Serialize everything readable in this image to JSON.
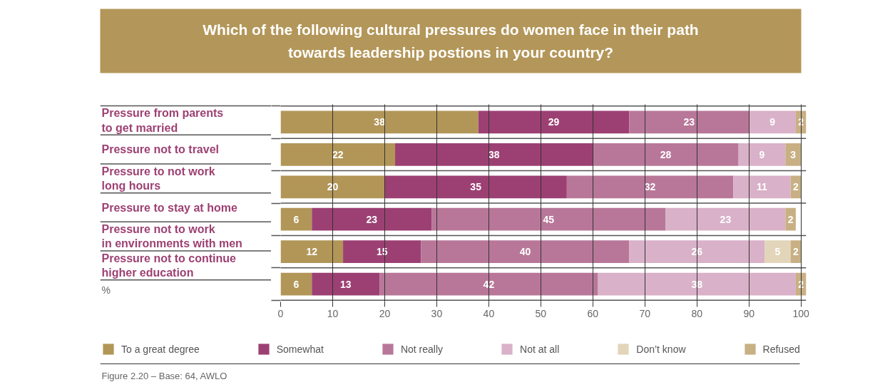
{
  "chart_data": {
    "type": "bar",
    "orientation": "horizontal",
    "stacked": true,
    "title": "Which of the following cultural pressures do women face in their path\ntowards leadership postions in your country?",
    "categories": [
      "Pressure from parents\nto get married",
      "Pressure not to travel",
      "Pressure to not work\nlong hours",
      "Pressure to stay at home",
      "Pressure not to work\nin environments with men",
      "Pressure not to continue\nhigher education"
    ],
    "series": [
      {
        "name": "To a great degree",
        "color": "#b29658",
        "values": [
          38,
          22,
          20,
          6,
          12,
          6
        ]
      },
      {
        "name": "Somewhat",
        "color": "#9c4073",
        "values": [
          29,
          38,
          35,
          23,
          15,
          13
        ]
      },
      {
        "name": "Not really",
        "color": "#b87799",
        "values": [
          23,
          28,
          32,
          45,
          40,
          42
        ]
      },
      {
        "name": "Not at all",
        "color": "#d9b1c8",
        "values": [
          9,
          9,
          11,
          23,
          26,
          38
        ]
      },
      {
        "name": "Don’t know",
        "color": "#e2d5ba",
        "values": [
          null,
          null,
          null,
          null,
          5,
          null
        ]
      },
      {
        "name": "Refused",
        "color": "#c8b084",
        "values": [
          2,
          3,
          2,
          2,
          2,
          2
        ]
      }
    ],
    "xlabel": "%",
    "xlim": [
      0,
      101
    ],
    "xticks": [
      0,
      10,
      20,
      30,
      40,
      50,
      60,
      70,
      80,
      90,
      100
    ],
    "grid": "x",
    "legend": "bottom",
    "data_labels": true,
    "annotations": [
      "Figure 2.20 – Base: 64, AWLO"
    ]
  }
}
